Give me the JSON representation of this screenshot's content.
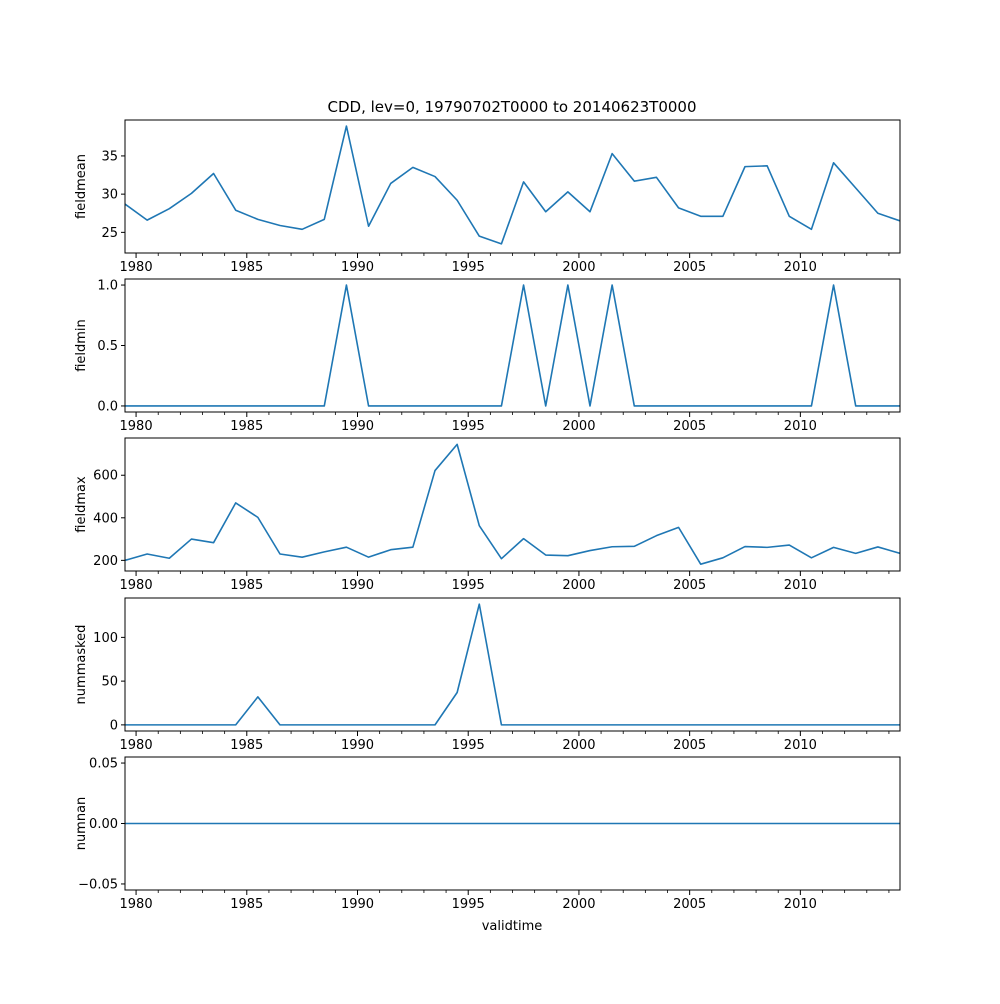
{
  "figure": {
    "title": "CDD, lev=0, 19790702T0000 to 20140623T0000",
    "xlabel": "validtime"
  },
  "style": {
    "line_color": "#1f77b4",
    "axes_color": "#000000",
    "background": "#ffffff"
  },
  "chart_data": [
    {
      "type": "line",
      "ylabel": "fieldmean",
      "x": [
        1979.5,
        1980.5,
        1981.5,
        1982.5,
        1983.5,
        1984.5,
        1985.5,
        1986.5,
        1987.5,
        1988.5,
        1989.5,
        1990.5,
        1991.5,
        1992.5,
        1993.5,
        1994.5,
        1995.5,
        1996.5,
        1997.5,
        1998.5,
        1999.5,
        2000.5,
        2001.5,
        2002.5,
        2003.5,
        2004.5,
        2005.5,
        2006.5,
        2007.5,
        2008.5,
        2009.5,
        2010.5,
        2011.5,
        2012.5,
        2013.5,
        2014.5
      ],
      "values": [
        28.7,
        26.6,
        28.1,
        30.1,
        32.7,
        27.9,
        26.7,
        25.9,
        25.4,
        26.7,
        38.9,
        25.8,
        31.4,
        33.5,
        32.3,
        29.2,
        24.5,
        23.5,
        31.6,
        27.7,
        30.3,
        27.7,
        35.3,
        31.7,
        32.2,
        28.2,
        27.1,
        27.1,
        33.6,
        33.7,
        27.1,
        25.4,
        34.1,
        30.8,
        27.5,
        26.5
      ],
      "xlim": [
        1979.5,
        2014.5
      ],
      "ylim": [
        22.3,
        39.7
      ],
      "yticks": [
        25,
        30,
        35
      ]
    },
    {
      "type": "line",
      "ylabel": "fieldmin",
      "x": [
        1979.5,
        1980.5,
        1981.5,
        1982.5,
        1983.5,
        1984.5,
        1985.5,
        1986.5,
        1987.5,
        1988.5,
        1989.5,
        1990.5,
        1991.5,
        1992.5,
        1993.5,
        1994.5,
        1995.5,
        1996.5,
        1997.5,
        1998.5,
        1999.5,
        2000.5,
        2001.5,
        2002.5,
        2003.5,
        2004.5,
        2005.5,
        2006.5,
        2007.5,
        2008.5,
        2009.5,
        2010.5,
        2011.5,
        2012.5,
        2013.5,
        2014.5
      ],
      "values": [
        0,
        0,
        0,
        0,
        0,
        0,
        0,
        0,
        0,
        0,
        1,
        0,
        0,
        0,
        0,
        0,
        0,
        0,
        1,
        0,
        1,
        0,
        1,
        0,
        0,
        0,
        0,
        0,
        0,
        0,
        0,
        0,
        1,
        0,
        0,
        0
      ],
      "xlim": [
        1979.5,
        2014.5
      ],
      "ylim": [
        -0.05,
        1.05
      ],
      "yticks": [
        0.0,
        0.5,
        1.0
      ],
      "ytick_labels": [
        "0.0",
        "0.5",
        "1.0"
      ]
    },
    {
      "type": "line",
      "ylabel": "fieldmax",
      "x": [
        1979.5,
        1980.5,
        1981.5,
        1982.5,
        1983.5,
        1984.5,
        1985.5,
        1986.5,
        1987.5,
        1988.5,
        1989.5,
        1990.5,
        1991.5,
        1992.5,
        1993.5,
        1994.5,
        1995.5,
        1996.5,
        1997.5,
        1998.5,
        1999.5,
        2000.5,
        2001.5,
        2002.5,
        2003.5,
        2004.5,
        2005.5,
        2006.5,
        2007.5,
        2008.5,
        2009.5,
        2010.5,
        2011.5,
        2012.5,
        2013.5,
        2014.5
      ],
      "values": [
        200,
        230,
        210,
        300,
        283,
        470,
        402,
        230,
        215,
        240,
        262,
        215,
        250,
        262,
        622,
        745,
        363,
        208,
        302,
        225,
        222,
        246,
        264,
        266,
        316,
        355,
        182,
        212,
        265,
        261,
        272,
        212,
        261,
        233,
        263,
        233
      ],
      "xlim": [
        1979.5,
        2014.5
      ],
      "ylim": [
        150,
        775
      ],
      "yticks": [
        200,
        400,
        600
      ]
    },
    {
      "type": "line",
      "ylabel": "nummasked",
      "x": [
        1979.5,
        1980.5,
        1981.5,
        1982.5,
        1983.5,
        1984.5,
        1985.5,
        1986.5,
        1987.5,
        1988.5,
        1989.5,
        1990.5,
        1991.5,
        1992.5,
        1993.5,
        1994.5,
        1995.5,
        1996.5,
        1997.5,
        1998.5,
        1999.5,
        2000.5,
        2001.5,
        2002.5,
        2003.5,
        2004.5,
        2005.5,
        2006.5,
        2007.5,
        2008.5,
        2009.5,
        2010.5,
        2011.5,
        2012.5,
        2013.5,
        2014.5
      ],
      "values": [
        0,
        0,
        0,
        0,
        0,
        0,
        32,
        0,
        0,
        0,
        0,
        0,
        0,
        0,
        0,
        37,
        138,
        0,
        0,
        0,
        0,
        0,
        0,
        0,
        0,
        0,
        0,
        0,
        0,
        0,
        0,
        0,
        0,
        0,
        0,
        0
      ],
      "xlim": [
        1979.5,
        2014.5
      ],
      "ylim": [
        -7,
        145
      ],
      "yticks": [
        0,
        50,
        100
      ]
    },
    {
      "type": "line",
      "ylabel": "numnan",
      "x": [
        1979.5,
        1980.5,
        1981.5,
        1982.5,
        1983.5,
        1984.5,
        1985.5,
        1986.5,
        1987.5,
        1988.5,
        1989.5,
        1990.5,
        1991.5,
        1992.5,
        1993.5,
        1994.5,
        1995.5,
        1996.5,
        1997.5,
        1998.5,
        1999.5,
        2000.5,
        2001.5,
        2002.5,
        2003.5,
        2004.5,
        2005.5,
        2006.5,
        2007.5,
        2008.5,
        2009.5,
        2010.5,
        2011.5,
        2012.5,
        2013.5,
        2014.5
      ],
      "values": [
        0,
        0,
        0,
        0,
        0,
        0,
        0,
        0,
        0,
        0,
        0,
        0,
        0,
        0,
        0,
        0,
        0,
        0,
        0,
        0,
        0,
        0,
        0,
        0,
        0,
        0,
        0,
        0,
        0,
        0,
        0,
        0,
        0,
        0,
        0,
        0
      ],
      "xlim": [
        1979.5,
        2014.5
      ],
      "ylim": [
        -0.055,
        0.055
      ],
      "yticks": [
        -0.05,
        0.0,
        0.05
      ],
      "ytick_labels": [
        "−0.05",
        "0.00",
        "0.05"
      ]
    }
  ],
  "x_axis": {
    "major_ticks": [
      1980,
      1985,
      1990,
      1995,
      2000,
      2005,
      2010
    ],
    "major_labels": [
      "1980",
      "1985",
      "1990",
      "1995",
      "2000",
      "2005",
      "2010"
    ],
    "minor_ticks": [
      1981,
      1982,
      1983,
      1984,
      1986,
      1987,
      1988,
      1989,
      1991,
      1992,
      1993,
      1994,
      1996,
      1997,
      1998,
      1999,
      2001,
      2002,
      2003,
      2004,
      2006,
      2007,
      2008,
      2009,
      2011,
      2012,
      2013,
      2014
    ]
  }
}
